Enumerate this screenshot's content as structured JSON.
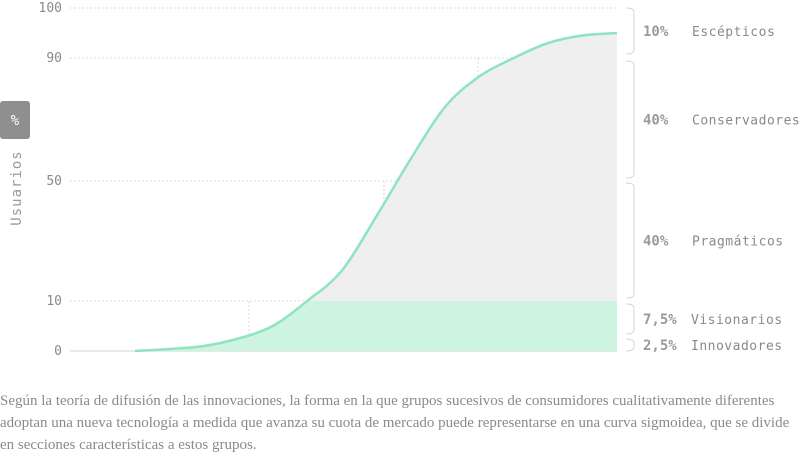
{
  "colors": {
    "curve": "#8fe3bf",
    "early_fill": "#cdf3e1",
    "late_fill": "#efefef",
    "grid": "#dcdcdc",
    "bracket": "#d6d6d6",
    "badge": "#8f8f8f"
  },
  "badge_label": "%",
  "y_axis_label": "Usuarios",
  "chart_data": {
    "type": "line",
    "title": "",
    "xlabel": "",
    "ylabel": "Usuarios",
    "ylim": [
      0,
      100
    ],
    "yticks": [
      0,
      10,
      50,
      90,
      100
    ],
    "grid": true,
    "series": [
      {
        "values": [
          0,
          0.4,
          1,
          2.5,
          5,
          10,
          20,
          38,
          57,
          74,
          84,
          90,
          93,
          94.5,
          95
        ]
      }
    ],
    "x": [
      0,
      0.5,
      1,
      1.5,
      2,
      2.5,
      3,
      3.5,
      4,
      4.5,
      5,
      5.5,
      6,
      6.5,
      7
    ],
    "segments": [
      {
        "pct": "2,5%",
        "name": "Innovadores"
      },
      {
        "pct": "7,5%",
        "name": "Visionarios"
      },
      {
        "pct": "40%",
        "name": "Pragmáticos"
      },
      {
        "pct": "40%",
        "name": "Conservadores"
      },
      {
        "pct": "10%",
        "name": "Escépticos"
      }
    ]
  },
  "caption": "Según la teoría de difusión de las innovaciones, la forma en la que grupos sucesivos de consumidores cualitativamente diferentes adoptan una nueva tecnología a medida que avanza su cuota de mercado puede representarse en una curva sigmoidea, que se divide en secciones características a estos grupos."
}
